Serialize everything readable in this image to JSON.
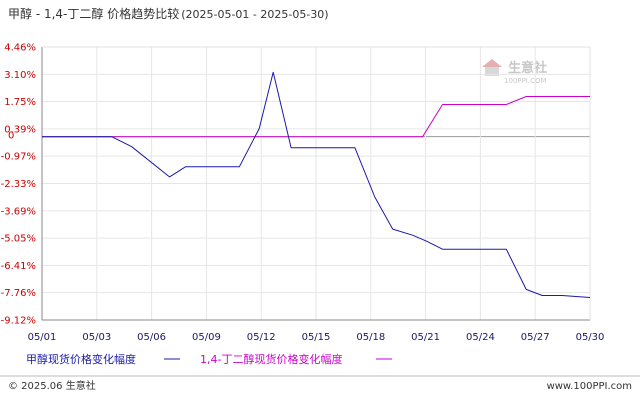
{
  "chart_data": {
    "type": "line",
    "title": "甲醇 - 1,4-丁二醇 价格趋势比较",
    "date_range": "(2025-05-01 - 2025-05-30)",
    "y_tick_labels": [
      "4.46%",
      "3.10%",
      "1.75%",
      "0.39%",
      "0",
      "-0.97%",
      "-2.33%",
      "-3.69%",
      "-5.05%",
      "-6.41%",
      "-7.76%",
      "-9.12%"
    ],
    "y_tick_values": [
      4.46,
      3.1,
      1.75,
      0.39,
      0,
      -0.97,
      -2.33,
      -3.69,
      -5.05,
      -6.41,
      -7.76,
      -9.12
    ],
    "ylim": [
      -9.12,
      4.46
    ],
    "x_tick_labels": [
      "05/01",
      "05/03",
      "05/06",
      "05/09",
      "05/12",
      "05/15",
      "05/18",
      "05/21",
      "05/24",
      "05/27",
      "05/30"
    ],
    "x_tick_days": [
      1,
      3.75,
      6.5,
      9.25,
      12,
      14.75,
      17.5,
      20.25,
      23,
      25.75,
      28.5
    ],
    "xlim": [
      1,
      28.5
    ],
    "grid": true,
    "legend_placement": "bottom-left",
    "series": [
      {
        "name": "甲醇现货价格变化幅度",
        "color": "#1a1aaa",
        "x": [
          1,
          4.5,
          5.5,
          7.4,
          8.2,
          10.9,
          11.9,
          12.6,
          13.5,
          16.7,
          17.7,
          18.6,
          19.6,
          20.3,
          21.1,
          24.3,
          25.3,
          26.1,
          27.1,
          28.5
        ],
        "y": [
          0,
          0,
          -0.5,
          -2.0,
          -1.5,
          -1.5,
          0.4,
          3.2,
          -0.55,
          -0.55,
          -3.0,
          -4.6,
          -4.9,
          -5.2,
          -5.6,
          -5.6,
          -7.6,
          -7.9,
          -7.9,
          -8.0
        ]
      },
      {
        "name": "1,4-丁二醇现货价格变化幅度",
        "color": "#cc00cc",
        "x": [
          1,
          20.1,
          21.1,
          24.3,
          25.3,
          28.5
        ],
        "y": [
          0,
          0,
          1.6,
          1.6,
          2.0,
          2.0
        ]
      }
    ]
  },
  "watermark": {
    "brand": "生意社",
    "url": "100PPI.COM"
  },
  "footer": {
    "copyright": "© 2025.06 生意社",
    "website": "www.100PPI.com"
  }
}
